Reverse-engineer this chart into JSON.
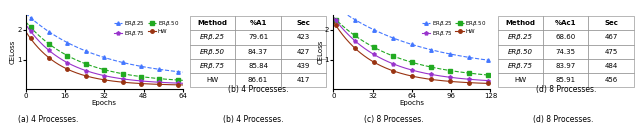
{
  "plot4a": {
    "title": "(a) 4 Processes.",
    "xlabel": "Epochs",
    "ylabel": "CELoss",
    "xlim": [
      0,
      64
    ],
    "xticks": [
      0,
      16,
      32,
      48,
      64
    ],
    "ylim": [
      0.05,
      2.4
    ],
    "curves": {
      "ERb25": {
        "color": "#4488ff",
        "marker": "^",
        "linestyle": "--",
        "label": "ERβ.25"
      },
      "ERb50": {
        "color": "#22aa22",
        "marker": "s",
        "linestyle": "--",
        "label": "ERβ.50"
      },
      "ERb75": {
        "color": "#aa44cc",
        "marker": "p",
        "linestyle": "-",
        "label": "ERβ.75"
      },
      "HW": {
        "color": "#aa3311",
        "marker": "o",
        "linestyle": "-",
        "label": "HW"
      }
    }
  },
  "plot4c": {
    "title": "(c) 8 Processes.",
    "xlabel": "Epochs",
    "ylabel": "CELoss",
    "xlim": [
      0,
      128
    ],
    "xticks": [
      0,
      32,
      64,
      96,
      128
    ],
    "ylim": [
      0.05,
      2.4
    ]
  },
  "table4b": {
    "title": "(b) 4 Processes.",
    "headers": [
      "Method",
      "%A1",
      "Sec"
    ],
    "rows": [
      [
        "ERβ.25",
        "79.61",
        "423"
      ],
      [
        "ERβ.50",
        "84.37",
        "427"
      ],
      [
        "ERβ.75",
        "85.84",
        "439"
      ],
      [
        "HW",
        "86.61",
        "417"
      ]
    ]
  },
  "table4d": {
    "title": "(d) 8 Processes.",
    "headers": [
      "Method",
      "%Ac1",
      "Sec"
    ],
    "rows": [
      [
        "ERβ.25",
        "68.60",
        "467"
      ],
      [
        "ERβ.50",
        "74.35",
        "475"
      ],
      [
        "ERβ.75",
        "83.97",
        "484"
      ],
      [
        "HW",
        "85.91",
        "456"
      ]
    ]
  },
  "curve_colors": {
    "ERb25": "#4477ff",
    "ERb50": "#22aa22",
    "ERb75": "#9933cc",
    "HW": "#993311"
  },
  "curve_markers": {
    "ERb25": "^",
    "ERb50": "s",
    "ERb75": "p",
    "HW": "o"
  },
  "curve_labels": {
    "ERb25": "ERβ.25",
    "ERb50": "ERβ.50",
    "ERb75": "ERβ.75",
    "HW": "HW"
  }
}
